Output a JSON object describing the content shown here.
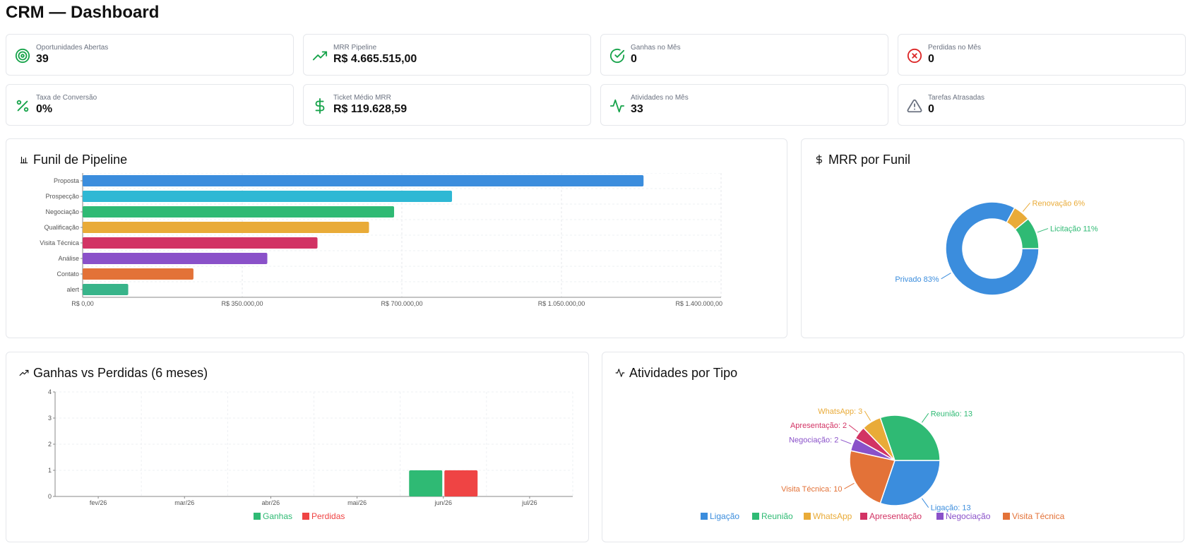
{
  "page": {
    "title": "CRM — Dashboard"
  },
  "kpis": [
    {
      "label": "Oportunidades Abertas",
      "value": "39",
      "icon": "target-icon",
      "color": "#16a34a"
    },
    {
      "label": "MRR Pipeline",
      "value": "R$ 4.665.515,00",
      "icon": "trending-up-icon",
      "color": "#16a34a"
    },
    {
      "label": "Ganhas no Mês",
      "value": "0",
      "icon": "check-circle-icon",
      "color": "#16a34a"
    },
    {
      "label": "Perdidas no Mês",
      "value": "0",
      "icon": "x-circle-icon",
      "color": "#dc2626"
    },
    {
      "label": "Taxa de Conversão",
      "value": "0%",
      "icon": "percent-icon",
      "color": "#16a34a"
    },
    {
      "label": "Ticket Médio MRR",
      "value": "R$ 119.628,59",
      "icon": "dollar-icon",
      "color": "#16a34a"
    },
    {
      "label": "Atividades no Mês",
      "value": "33",
      "icon": "activity-icon",
      "color": "#16a34a"
    },
    {
      "label": "Tarefas Atrasadas",
      "value": "0",
      "icon": "alert-triangle-icon",
      "color": "#6b7280"
    }
  ],
  "cards": {
    "funnel": {
      "title": "Funil de Pipeline",
      "icon": "bar-chart-icon"
    },
    "mrr": {
      "title": "MRR por Funil",
      "icon": "dollar-icon"
    },
    "wonlost": {
      "title": "Ganhas vs Perdidas (6 meses)",
      "icon": "trending-up-icon"
    },
    "activities": {
      "title": "Atividades por Tipo",
      "icon": "activity-icon"
    }
  },
  "chart_data": [
    {
      "id": "funnel",
      "type": "bar",
      "orientation": "horizontal",
      "categories": [
        "Proposta",
        "Prospecção",
        "Negociação",
        "Qualificação",
        "Visita Técnica",
        "Análise",
        "Contato",
        "alert"
      ],
      "values": [
        1230000,
        810000,
        683000,
        628000,
        515000,
        405000,
        243000,
        100000
      ],
      "colors": [
        "#3b8ddd",
        "#2fb8d4",
        "#2fba74",
        "#e9ab38",
        "#d23364",
        "#8a51c9",
        "#e37238",
        "#38b48a"
      ],
      "xlim": [
        0,
        1400000
      ],
      "ticks": [
        "R$ 0,00",
        "R$ 350.000,00",
        "R$ 700.000,00",
        "R$ 1.050.000,00",
        "R$ 1.400.000,00"
      ],
      "grid": true
    },
    {
      "id": "mrr",
      "type": "pie",
      "donut": true,
      "slices": [
        {
          "label": "Privado 83%",
          "value": 83,
          "color": "#3b8ddd"
        },
        {
          "label": "Renovação 6%",
          "value": 6,
          "color": "#e9ab38"
        },
        {
          "label": "Licitação 11%",
          "value": 11,
          "color": "#2fba74"
        }
      ]
    },
    {
      "id": "wonlost",
      "type": "bar",
      "categories": [
        "fev/26",
        "mar/26",
        "abr/26",
        "mai/26",
        "jun/26",
        "jul/26"
      ],
      "series": [
        {
          "name": "Ganhas",
          "values": [
            0,
            0,
            0,
            0,
            1,
            0
          ],
          "color": "#2fba74"
        },
        {
          "name": "Perdidas",
          "values": [
            0,
            0,
            0,
            0,
            1,
            0
          ],
          "color": "#ef4444"
        }
      ],
      "ylim": [
        0,
        4
      ],
      "yticks": [
        "0",
        "1",
        "2",
        "3",
        "4"
      ],
      "grid": true,
      "legend": "bottom"
    },
    {
      "id": "activities",
      "type": "pie",
      "slices": [
        {
          "name": "Ligação",
          "label": "Ligação: 13",
          "value": 13,
          "color": "#3b8ddd"
        },
        {
          "name": "Visita Técnica",
          "label": "Visita Técnica: 10",
          "value": 10,
          "color": "#e37238"
        },
        {
          "name": "Negociação",
          "label": "Negociação: 2",
          "value": 2,
          "color": "#8a51c9"
        },
        {
          "name": "Apresentação",
          "label": "Apresentação: 2",
          "value": 2,
          "color": "#d23364"
        },
        {
          "name": "WhatsApp",
          "label": "WhatsApp: 3",
          "value": 3,
          "color": "#e9ab38"
        },
        {
          "name": "Reunião",
          "label": "Reunião: 13",
          "value": 13,
          "color": "#2fba74"
        }
      ],
      "legend_order": [
        "Ligação",
        "Reunião",
        "WhatsApp",
        "Apresentação",
        "Negociação",
        "Visita Técnica"
      ],
      "legend": "bottom"
    }
  ]
}
